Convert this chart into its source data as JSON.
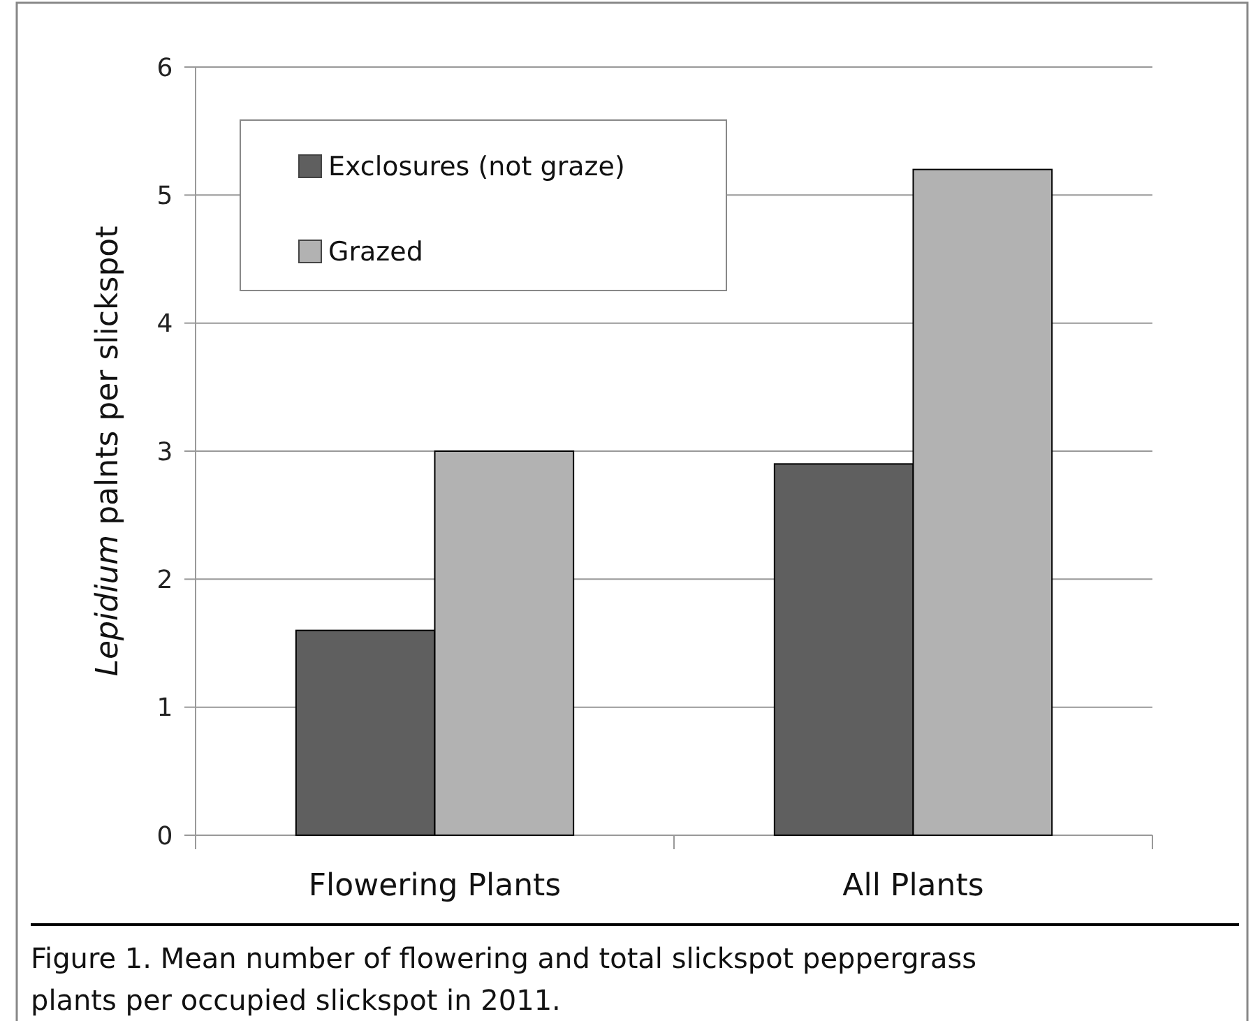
{
  "chart_data": {
    "type": "bar",
    "ylabel": "Lepidium palnts per slickspot",
    "categories": [
      "Flowering Plants",
      "All Plants"
    ],
    "series": [
      {
        "name": "Exclosures (not graze)",
        "color": "#5f5f5f",
        "values": [
          1.6,
          2.9
        ]
      },
      {
        "name": "Grazed",
        "color": "#b2b2b2",
        "values": [
          3.0,
          5.2
        ]
      }
    ],
    "ylim": [
      0,
      6
    ],
    "yticks": [
      0,
      1,
      2,
      3,
      4,
      5,
      6
    ],
    "grid": "y",
    "legend": "top left",
    "annotations": [
      "Figure 1. Mean number of flowering and total slickspot peppergrass plants per occupied slickspot in 2011."
    ]
  }
}
